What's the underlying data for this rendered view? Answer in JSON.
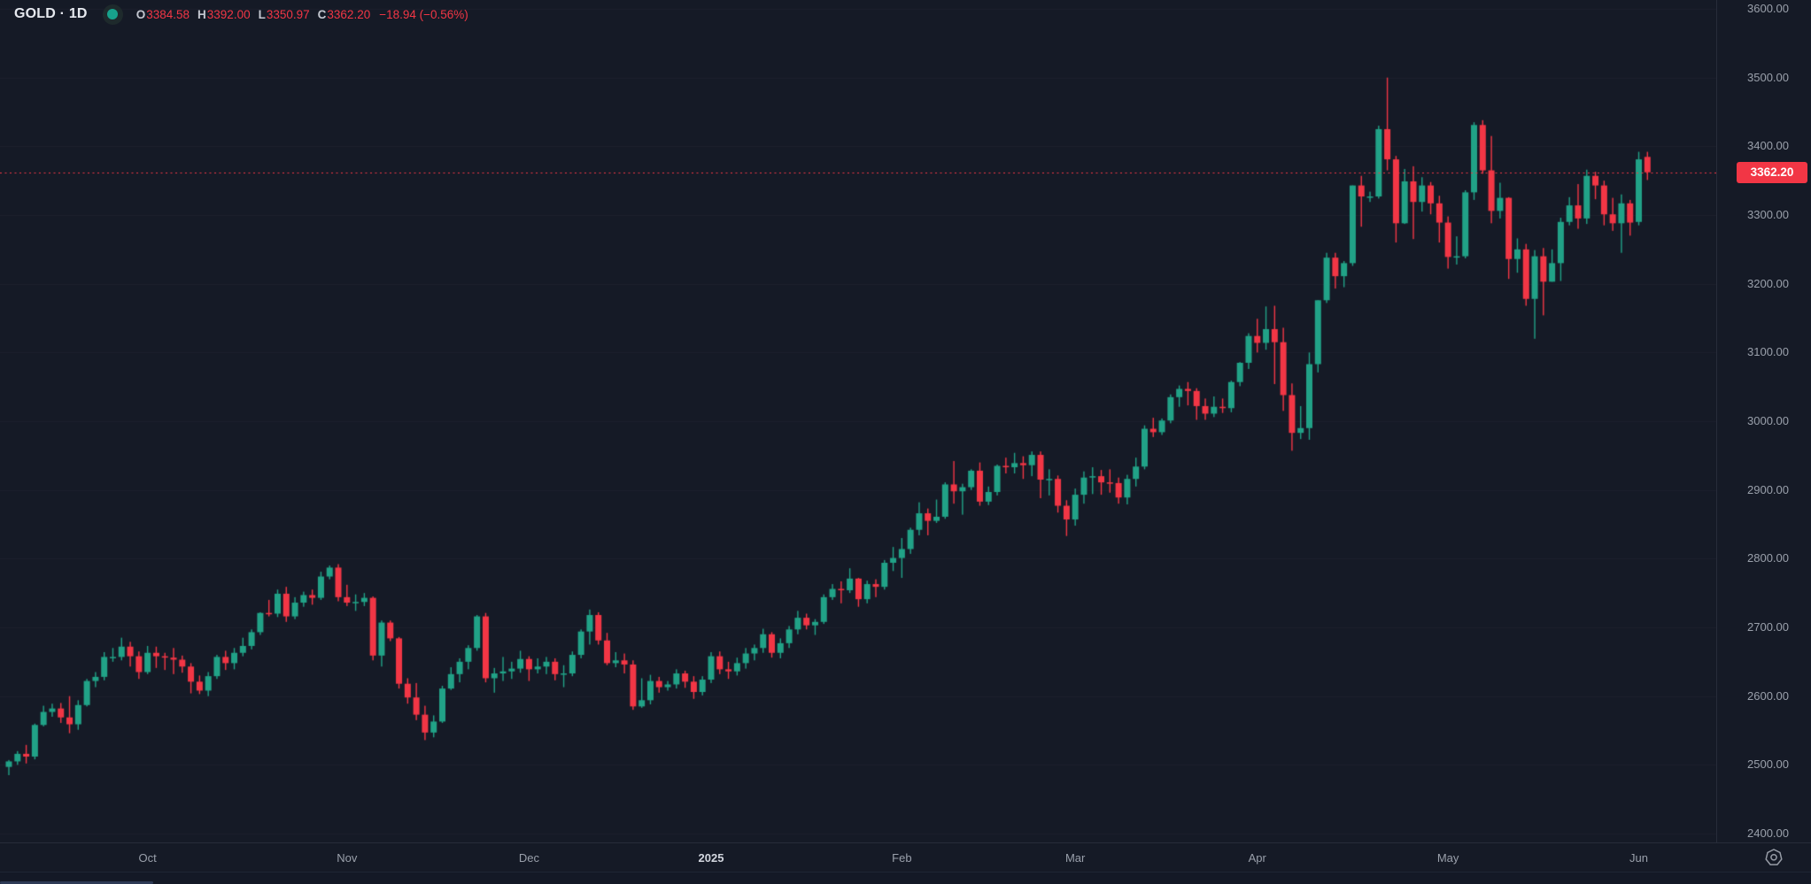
{
  "header": {
    "title": "GOLD · 1D",
    "ohlc": [
      {
        "label": "O",
        "value": "3384.58"
      },
      {
        "label": "H",
        "value": "3392.00"
      },
      {
        "label": "L",
        "value": "3350.97"
      },
      {
        "label": "C",
        "value": "3362.20"
      }
    ],
    "change": "−18.94 (−0.56%)"
  },
  "chart_data": {
    "type": "candlestick",
    "symbol": "GOLD",
    "interval": "1D",
    "grid": "faint-horizontal",
    "colors": {
      "up": "#21a287",
      "down": "#f23645",
      "background": "#151a26",
      "axis_text": "#9aa0ab",
      "price_line": "#f23645"
    },
    "y_axis": {
      "min": 2400,
      "max": 3600,
      "step": 100,
      "labels": [
        "3600.00",
        "3500.00",
        "3400.00",
        "3300.00",
        "3200.00",
        "3100.00",
        "3000.00",
        "2900.00",
        "2800.00",
        "2700.00",
        "2600.00",
        "2500.00",
        "2400.00"
      ]
    },
    "x_ticks": [
      {
        "label": "Oct",
        "index": 16,
        "major": false
      },
      {
        "label": "Nov",
        "index": 39,
        "major": false
      },
      {
        "label": "Dec",
        "index": 60,
        "major": false
      },
      {
        "label": "2025",
        "index": 81,
        "major": true
      },
      {
        "label": "Feb",
        "index": 103,
        "major": false
      },
      {
        "label": "Mar",
        "index": 123,
        "major": false
      },
      {
        "label": "Apr",
        "index": 144,
        "major": false
      },
      {
        "label": "May",
        "index": 166,
        "major": false
      },
      {
        "label": "Jun",
        "index": 188,
        "major": false
      }
    ],
    "price_line": {
      "value": 3362.2,
      "label": "3362.20"
    },
    "candles": [
      [
        2497,
        2507,
        2485,
        2505
      ],
      [
        2505,
        2520,
        2500,
        2516
      ],
      [
        2516,
        2529,
        2502,
        2512
      ],
      [
        2512,
        2560,
        2508,
        2558
      ],
      [
        2558,
        2586,
        2556,
        2577
      ],
      [
        2577,
        2589,
        2570,
        2582
      ],
      [
        2582,
        2590,
        2561,
        2569
      ],
      [
        2569,
        2600,
        2546,
        2559
      ],
      [
        2559,
        2594,
        2551,
        2587
      ],
      [
        2587,
        2625,
        2585,
        2622
      ],
      [
        2622,
        2635,
        2613,
        2628
      ],
      [
        2628,
        2664,
        2623,
        2657
      ],
      [
        2657,
        2670,
        2650,
        2657
      ],
      [
        2657,
        2685,
        2652,
        2672
      ],
      [
        2672,
        2679,
        2643,
        2658
      ],
      [
        2658,
        2665,
        2625,
        2635
      ],
      [
        2635,
        2673,
        2632,
        2663
      ],
      [
        2663,
        2672,
        2641,
        2658
      ],
      [
        2658,
        2663,
        2638,
        2656
      ],
      [
        2656,
        2670,
        2632,
        2653
      ],
      [
        2653,
        2659,
        2634,
        2643
      ],
      [
        2643,
        2648,
        2604,
        2621
      ],
      [
        2621,
        2630,
        2603,
        2608
      ],
      [
        2608,
        2635,
        2600,
        2629
      ],
      [
        2629,
        2660,
        2625,
        2657
      ],
      [
        2657,
        2666,
        2638,
        2648
      ],
      [
        2648,
        2670,
        2639,
        2663
      ],
      [
        2663,
        2685,
        2658,
        2673
      ],
      [
        2673,
        2697,
        2668,
        2693
      ],
      [
        2693,
        2722,
        2689,
        2721
      ],
      [
        2721,
        2740,
        2716,
        2720
      ],
      [
        2720,
        2755,
        2715,
        2749
      ],
      [
        2749,
        2759,
        2708,
        2716
      ],
      [
        2716,
        2744,
        2712,
        2736
      ],
      [
        2736,
        2752,
        2730,
        2747
      ],
      [
        2747,
        2755,
        2733,
        2743
      ],
      [
        2743,
        2781,
        2740,
        2774
      ],
      [
        2774,
        2790,
        2770,
        2787
      ],
      [
        2787,
        2792,
        2738,
        2744
      ],
      [
        2744,
        2762,
        2731,
        2736
      ],
      [
        2736,
        2748,
        2724,
        2737
      ],
      [
        2737,
        2750,
        2731,
        2743
      ],
      [
        2743,
        2745,
        2652,
        2659
      ],
      [
        2659,
        2710,
        2643,
        2707
      ],
      [
        2707,
        2710,
        2680,
        2684
      ],
      [
        2684,
        2686,
        2611,
        2618
      ],
      [
        2618,
        2626,
        2589,
        2598
      ],
      [
        2598,
        2619,
        2565,
        2573
      ],
      [
        2573,
        2586,
        2536,
        2547
      ],
      [
        2547,
        2572,
        2540,
        2563
      ],
      [
        2563,
        2615,
        2561,
        2611
      ],
      [
        2611,
        2642,
        2609,
        2632
      ],
      [
        2632,
        2655,
        2620,
        2650
      ],
      [
        2650,
        2674,
        2639,
        2670
      ],
      [
        2670,
        2718,
        2666,
        2716
      ],
      [
        2716,
        2721,
        2620,
        2626
      ],
      [
        2626,
        2641,
        2605,
        2633
      ],
      [
        2633,
        2657,
        2622,
        2636
      ],
      [
        2636,
        2650,
        2625,
        2640
      ],
      [
        2640,
        2666,
        2634,
        2654
      ],
      [
        2654,
        2658,
        2622,
        2639
      ],
      [
        2639,
        2655,
        2633,
        2643
      ],
      [
        2643,
        2657,
        2632,
        2650
      ],
      [
        2650,
        2655,
        2623,
        2632
      ],
      [
        2632,
        2645,
        2613,
        2633
      ],
      [
        2633,
        2665,
        2629,
        2660
      ],
      [
        2660,
        2697,
        2655,
        2694
      ],
      [
        2694,
        2726,
        2675,
        2718
      ],
      [
        2718,
        2722,
        2675,
        2681
      ],
      [
        2681,
        2692,
        2645,
        2648
      ],
      [
        2648,
        2664,
        2642,
        2652
      ],
      [
        2652,
        2662,
        2633,
        2646
      ],
      [
        2646,
        2652,
        2580,
        2585
      ],
      [
        2585,
        2626,
        2583,
        2594
      ],
      [
        2594,
        2631,
        2588,
        2622
      ],
      [
        2622,
        2628,
        2605,
        2613
      ],
      [
        2613,
        2622,
        2608,
        2617
      ],
      [
        2617,
        2639,
        2611,
        2633
      ],
      [
        2633,
        2637,
        2612,
        2621
      ],
      [
        2621,
        2629,
        2596,
        2606
      ],
      [
        2606,
        2629,
        2601,
        2624
      ],
      [
        2624,
        2664,
        2619,
        2658
      ],
      [
        2658,
        2665,
        2632,
        2639
      ],
      [
        2639,
        2650,
        2625,
        2636
      ],
      [
        2636,
        2656,
        2630,
        2648
      ],
      [
        2648,
        2670,
        2640,
        2662
      ],
      [
        2662,
        2675,
        2652,
        2670
      ],
      [
        2670,
        2698,
        2663,
        2690
      ],
      [
        2690,
        2693,
        2656,
        2663
      ],
      [
        2663,
        2684,
        2655,
        2677
      ],
      [
        2677,
        2702,
        2670,
        2697
      ],
      [
        2697,
        2724,
        2690,
        2714
      ],
      [
        2714,
        2720,
        2697,
        2703
      ],
      [
        2703,
        2712,
        2689,
        2708
      ],
      [
        2708,
        2748,
        2705,
        2744
      ],
      [
        2744,
        2763,
        2740,
        2756
      ],
      [
        2756,
        2767,
        2735,
        2754
      ],
      [
        2754,
        2786,
        2750,
        2771
      ],
      [
        2771,
        2772,
        2730,
        2741
      ],
      [
        2741,
        2768,
        2735,
        2763
      ],
      [
        2763,
        2770,
        2744,
        2759
      ],
      [
        2759,
        2798,
        2755,
        2794
      ],
      [
        2794,
        2817,
        2782,
        2801
      ],
      [
        2801,
        2830,
        2772,
        2814
      ],
      [
        2814,
        2845,
        2807,
        2842
      ],
      [
        2842,
        2882,
        2834,
        2866
      ],
      [
        2866,
        2873,
        2834,
        2855
      ],
      [
        2855,
        2886,
        2852,
        2861
      ],
      [
        2861,
        2911,
        2858,
        2908
      ],
      [
        2908,
        2942,
        2880,
        2898
      ],
      [
        2898,
        2909,
        2864,
        2904
      ],
      [
        2904,
        2930,
        2900,
        2928
      ],
      [
        2928,
        2940,
        2877,
        2883
      ],
      [
        2883,
        2905,
        2878,
        2897
      ],
      [
        2897,
        2937,
        2892,
        2935
      ],
      [
        2935,
        2947,
        2924,
        2933
      ],
      [
        2933,
        2954,
        2924,
        2939
      ],
      [
        2939,
        2949,
        2916,
        2936
      ],
      [
        2936,
        2956,
        2920,
        2951
      ],
      [
        2951,
        2956,
        2888,
        2915
      ],
      [
        2915,
        2930,
        2892,
        2916
      ],
      [
        2916,
        2921,
        2867,
        2877
      ],
      [
        2877,
        2885,
        2833,
        2857
      ],
      [
        2857,
        2902,
        2848,
        2893
      ],
      [
        2893,
        2927,
        2880,
        2918
      ],
      [
        2918,
        2933,
        2894,
        2920
      ],
      [
        2920,
        2929,
        2893,
        2911
      ],
      [
        2911,
        2930,
        2896,
        2910
      ],
      [
        2910,
        2918,
        2880,
        2889
      ],
      [
        2889,
        2922,
        2879,
        2916
      ],
      [
        2916,
        2947,
        2905,
        2934
      ],
      [
        2934,
        2994,
        2930,
        2989
      ],
      [
        2989,
        3005,
        2977,
        2984
      ],
      [
        2984,
        3004,
        2980,
        3001
      ],
      [
        3001,
        3039,
        2997,
        3035
      ],
      [
        3035,
        3052,
        3021,
        3047
      ],
      [
        3047,
        3057,
        3023,
        3044
      ],
      [
        3044,
        3048,
        3002,
        3022
      ],
      [
        3022,
        3033,
        3002,
        3011
      ],
      [
        3011,
        3036,
        3006,
        3021
      ],
      [
        3021,
        3033,
        3012,
        3019
      ],
      [
        3019,
        3059,
        3013,
        3057
      ],
      [
        3057,
        3086,
        3051,
        3085
      ],
      [
        3085,
        3128,
        3076,
        3124
      ],
      [
        3124,
        3149,
        3100,
        3114
      ],
      [
        3114,
        3167,
        3104,
        3134
      ],
      [
        3134,
        3168,
        3054,
        3115
      ],
      [
        3115,
        3136,
        3015,
        3038
      ],
      [
        3038,
        3055,
        2957,
        2983
      ],
      [
        2983,
        3022,
        2974,
        2990
      ],
      [
        2990,
        3100,
        2973,
        3083
      ],
      [
        3083,
        3176,
        3071,
        3176
      ],
      [
        3176,
        3245,
        3172,
        3238
      ],
      [
        3238,
        3245,
        3193,
        3211
      ],
      [
        3211,
        3233,
        3195,
        3230
      ],
      [
        3230,
        3343,
        3226,
        3343
      ],
      [
        3343,
        3357,
        3283,
        3327
      ],
      [
        3327,
        3334,
        3319,
        3327
      ],
      [
        3327,
        3430,
        3324,
        3425
      ],
      [
        3425,
        3500,
        3365,
        3381
      ],
      [
        3381,
        3386,
        3260,
        3288
      ],
      [
        3288,
        3367,
        3287,
        3349
      ],
      [
        3349,
        3371,
        3265,
        3319
      ],
      [
        3319,
        3355,
        3305,
        3343
      ],
      [
        3343,
        3348,
        3301,
        3317
      ],
      [
        3317,
        3328,
        3260,
        3289
      ],
      [
        3289,
        3298,
        3222,
        3239
      ],
      [
        3239,
        3269,
        3228,
        3240
      ],
      [
        3240,
        3336,
        3237,
        3333
      ],
      [
        3333,
        3435,
        3322,
        3431
      ],
      [
        3431,
        3438,
        3360,
        3365
      ],
      [
        3365,
        3415,
        3288,
        3306
      ],
      [
        3306,
        3347,
        3295,
        3325
      ],
      [
        3325,
        3326,
        3207,
        3236
      ],
      [
        3236,
        3266,
        3216,
        3250
      ],
      [
        3250,
        3258,
        3168,
        3178
      ],
      [
        3178,
        3249,
        3120,
        3240
      ],
      [
        3240,
        3252,
        3154,
        3203
      ],
      [
        3203,
        3250,
        3203,
        3230
      ],
      [
        3230,
        3296,
        3204,
        3290
      ],
      [
        3290,
        3326,
        3285,
        3314
      ],
      [
        3314,
        3345,
        3280,
        3295
      ],
      [
        3295,
        3366,
        3287,
        3357
      ],
      [
        3357,
        3363,
        3323,
        3343
      ],
      [
        3343,
        3350,
        3285,
        3301
      ],
      [
        3301,
        3325,
        3277,
        3288
      ],
      [
        3288,
        3330,
        3245,
        3317
      ],
      [
        3317,
        3322,
        3270,
        3289
      ],
      [
        3290,
        3392,
        3285,
        3381
      ],
      [
        3384.58,
        3392.0,
        3350.97,
        3362.2
      ]
    ]
  },
  "time_axis": {
    "settings_icon": "chart-settings"
  }
}
